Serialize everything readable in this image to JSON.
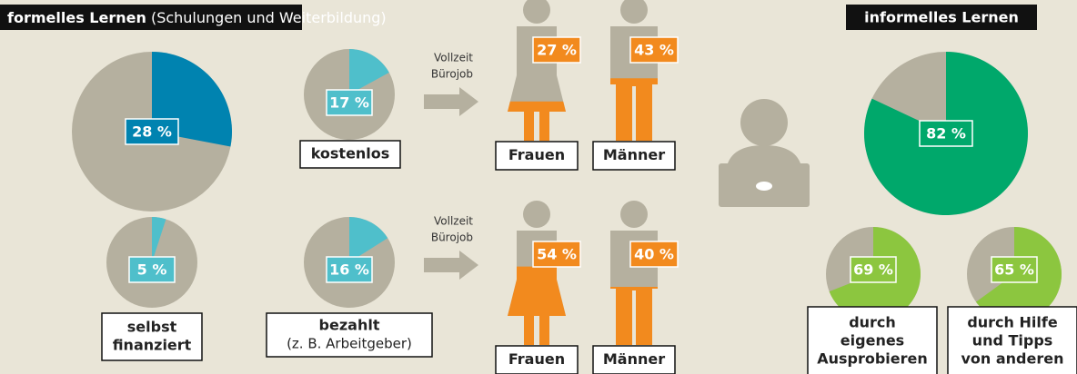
{
  "formal": {
    "title": "formelles Lernen",
    "subtitle": "(Schulungen und Weiterbildung)",
    "pies": [
      {
        "value": 28,
        "value_label": "28 %",
        "color": "#0083b0"
      },
      {
        "value": 17,
        "value_label": "17 %",
        "color": "#4fbfcb",
        "name": [
          "kostenlos"
        ]
      },
      {
        "value": 5,
        "value_label": "5 %",
        "color": "#4fbfcb",
        "name": [
          "selbst",
          "finanziert"
        ]
      },
      {
        "value": 16,
        "value_label": "16 %",
        "color": "#4fbfcb",
        "name": [
          "bezahlt"
        ],
        "note": "(z. B. Arbeitgeber)"
      }
    ]
  },
  "rows": [
    {
      "job": [
        "Vollzeit",
        "Bürojob"
      ],
      "people": [
        {
          "name": "Frauen",
          "value": 27,
          "value_label": "27 %"
        },
        {
          "name": "Männer",
          "value": 43,
          "value_label": "43 %"
        }
      ]
    },
    {
      "job": [
        "Vollzeit",
        "Bürojob"
      ],
      "people": [
        {
          "name": "Frauen",
          "value": 54,
          "value_label": "54 %"
        },
        {
          "name": "Männer",
          "value": 40,
          "value_label": "40 %"
        }
      ]
    }
  ],
  "people_color": "#f28a1e",
  "informal": {
    "title": "informelles Lernen",
    "pies": [
      {
        "value": 82,
        "value_label": "82 %",
        "color": "#00a86b"
      },
      {
        "value": 69,
        "value_label": "69 %",
        "color": "#8cc63f",
        "name": [
          "durch",
          "eigenes",
          "Ausprobieren"
        ]
      },
      {
        "value": 65,
        "value_label": "65 %",
        "color": "#8cc63f",
        "name": [
          "durch Hilfe",
          "und Tipps",
          "von anderen"
        ]
      }
    ]
  }
}
